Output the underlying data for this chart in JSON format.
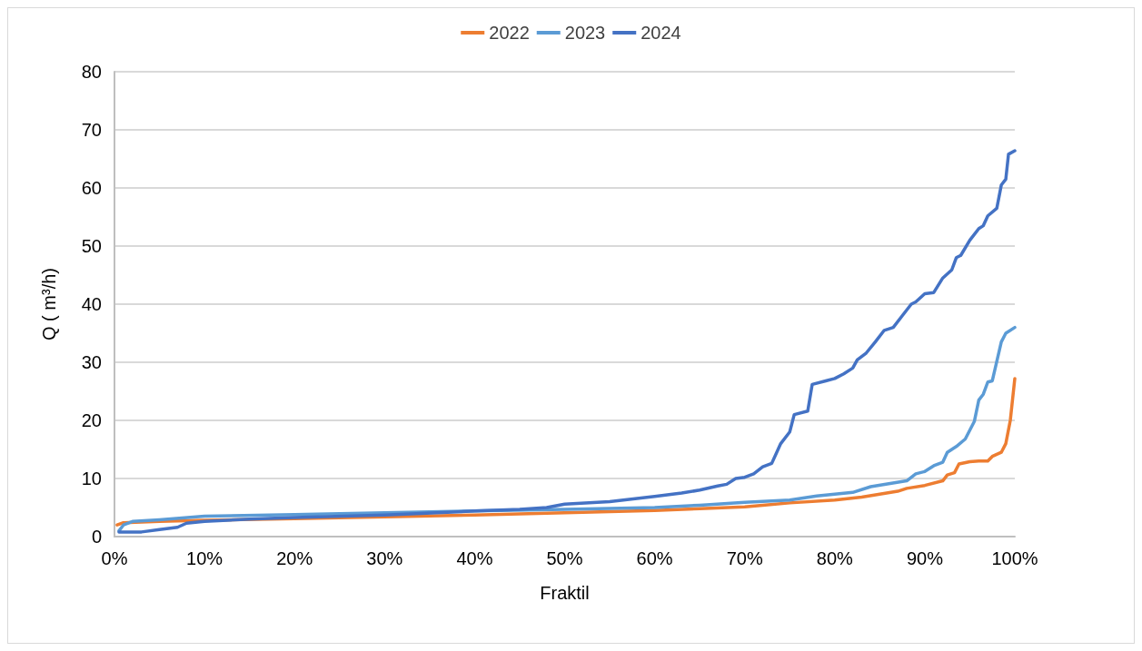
{
  "chart_data": {
    "type": "line",
    "xlabel": "Fraktil",
    "ylabel": "Q ( m³/h)",
    "xlim": [
      0,
      100
    ],
    "xticks": [
      {
        "value": 0,
        "label": "0%"
      },
      {
        "value": 10,
        "label": "10%"
      },
      {
        "value": 20,
        "label": "20%"
      },
      {
        "value": 30,
        "label": "30%"
      },
      {
        "value": 40,
        "label": "40%"
      },
      {
        "value": 50,
        "label": "50%"
      },
      {
        "value": 60,
        "label": "60%"
      },
      {
        "value": 70,
        "label": "70%"
      },
      {
        "value": 80,
        "label": "80%"
      },
      {
        "value": 90,
        "label": "90%"
      },
      {
        "value": 100,
        "label": "100%"
      }
    ],
    "ylim": [
      0,
      80
    ],
    "yticks": [
      0,
      10,
      20,
      30,
      40,
      50,
      60,
      70,
      80
    ],
    "grid": "y",
    "legend": "top",
    "marker": "none",
    "line_style": "solid",
    "series": [
      {
        "name": "2022",
        "color": "#ed7d31",
        "x": [
          0.3,
          1,
          5,
          10,
          20,
          30,
          40,
          50,
          60,
          65,
          70,
          72,
          75,
          80,
          83,
          85,
          87,
          88,
          90,
          92,
          92.5,
          93.3,
          93.8,
          95,
          96,
          97,
          97.5,
          98.5,
          99,
          99.5,
          100
        ],
        "values": [
          2.0,
          2.4,
          2.6,
          2.8,
          3.1,
          3.4,
          3.7,
          4.1,
          4.5,
          4.8,
          5.1,
          5.4,
          5.8,
          6.3,
          6.8,
          7.3,
          7.8,
          8.3,
          8.8,
          9.6,
          10.6,
          11.0,
          12.5,
          12.9,
          13.0,
          13.0,
          13.8,
          14.5,
          16.0,
          20.0,
          27.2
        ]
      },
      {
        "name": "2023",
        "color": "#5b9bd5",
        "x": [
          0.5,
          1,
          2,
          5,
          10,
          20,
          30,
          40,
          50,
          60,
          65,
          70,
          75,
          78,
          80,
          82,
          84,
          86,
          88,
          89,
          90,
          91,
          92,
          92.5,
          93.5,
          94.5,
          95.5,
          96,
          96.5,
          97,
          97.5,
          98.5,
          99,
          100
        ],
        "values": [
          1.0,
          2.0,
          2.6,
          2.9,
          3.5,
          3.8,
          4.1,
          4.4,
          4.7,
          5.0,
          5.4,
          5.9,
          6.3,
          7.0,
          7.3,
          7.6,
          8.6,
          9.1,
          9.6,
          10.8,
          11.2,
          12.2,
          12.8,
          14.5,
          15.5,
          16.8,
          19.8,
          23.5,
          24.5,
          26.6,
          26.8,
          33.5,
          35.0,
          36.0
        ]
      },
      {
        "name": "2024",
        "color": "#4472c4",
        "x": [
          0.5,
          3,
          5,
          7,
          8,
          10,
          15,
          20,
          30,
          40,
          45,
          48,
          50,
          55,
          60,
          63,
          65,
          67,
          68,
          69,
          70,
          71,
          72,
          73,
          74,
          75,
          75.5,
          77,
          77.5,
          79,
          80,
          81,
          82,
          82.5,
          83.5,
          84.5,
          85.5,
          86.5,
          87.5,
          88.5,
          89,
          90,
          91,
          92,
          93,
          93.5,
          94,
          95,
          96,
          96.5,
          97,
          98,
          98.5,
          99,
          99.3,
          100
        ],
        "values": [
          0.8,
          0.8,
          1.2,
          1.6,
          2.3,
          2.6,
          3.0,
          3.3,
          3.7,
          4.4,
          4.7,
          5.0,
          5.6,
          6.0,
          6.9,
          7.5,
          8.0,
          8.7,
          9.0,
          10.0,
          10.2,
          10.8,
          12.0,
          12.6,
          16.0,
          18.0,
          21.0,
          21.6,
          26.2,
          26.8,
          27.2,
          28.0,
          29.0,
          30.4,
          31.6,
          33.5,
          35.5,
          36.0,
          38.0,
          40.0,
          40.4,
          41.8,
          42.0,
          44.5,
          45.9,
          48.0,
          48.4,
          51.0,
          53.0,
          53.5,
          55.2,
          56.5,
          60.5,
          61.5,
          65.8,
          66.4
        ]
      }
    ]
  }
}
